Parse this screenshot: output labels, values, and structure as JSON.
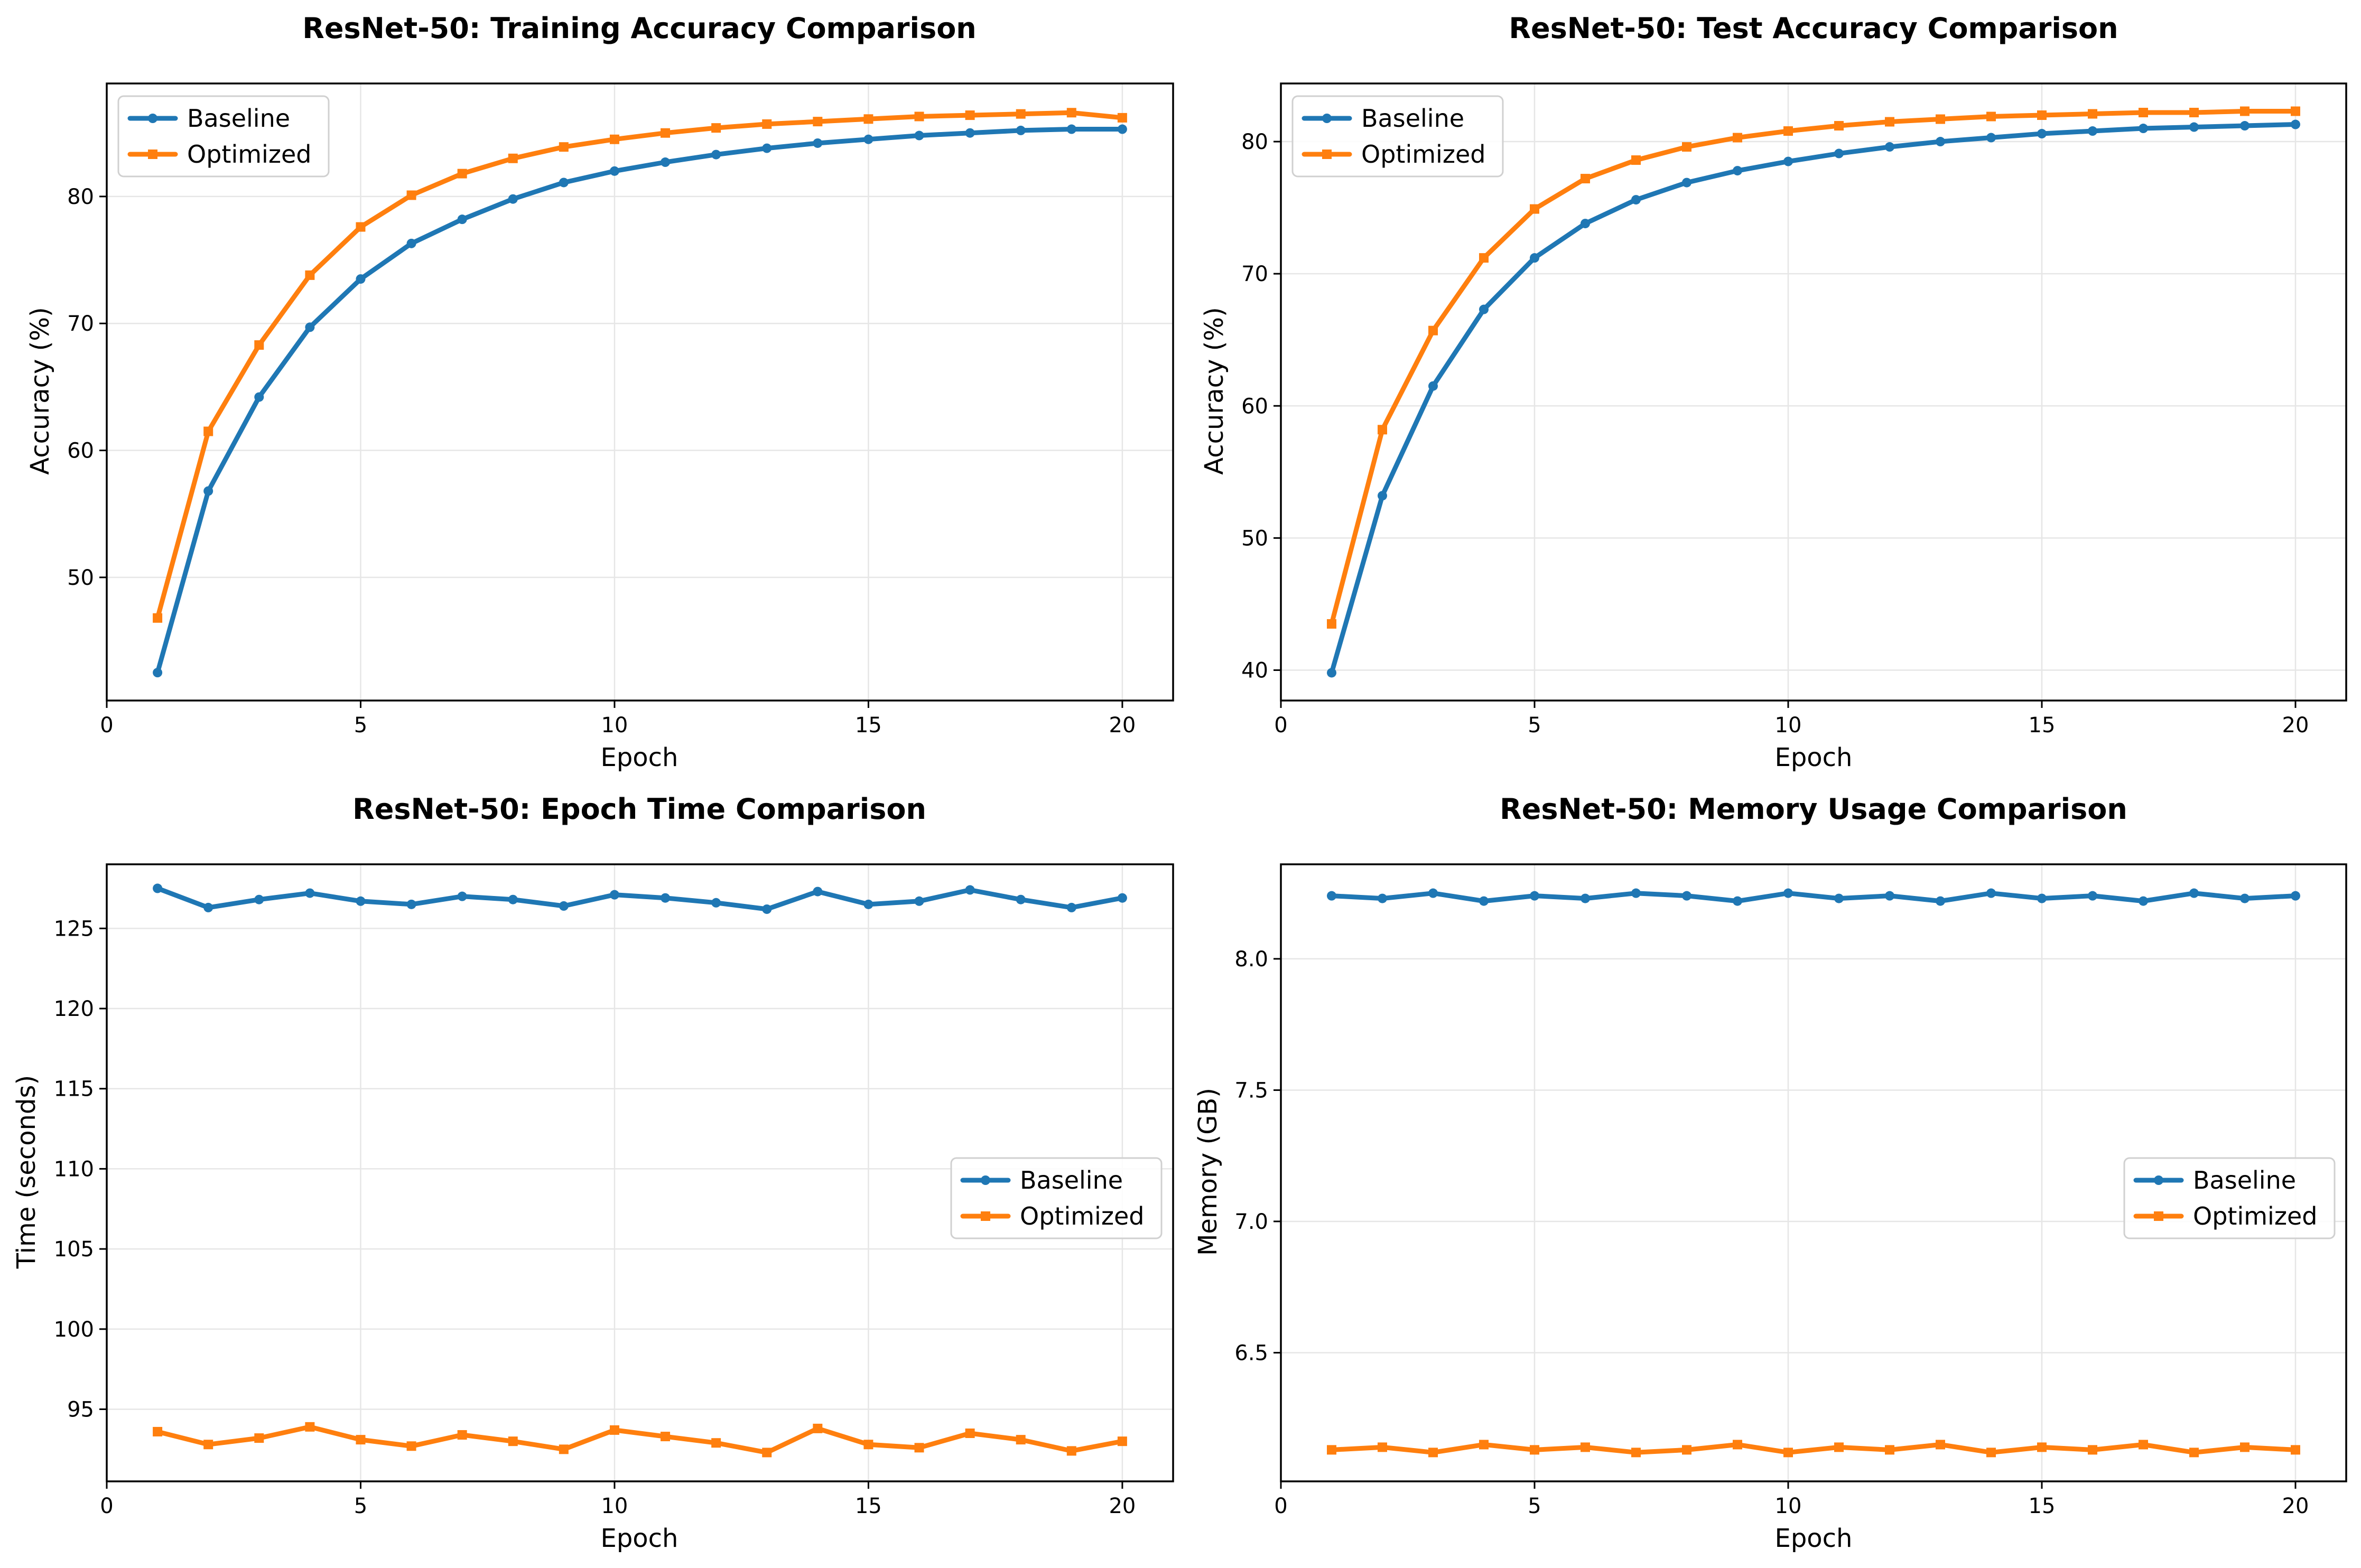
{
  "colors": {
    "baseline": "#1f77b4",
    "optimized": "#ff7f0e"
  },
  "chart_data": [
    {
      "type": "line",
      "title": "ResNet-50: Training Accuracy Comparison",
      "xlabel": "Epoch",
      "ylabel": "Accuracy (%)",
      "xlim": [
        0,
        21
      ],
      "ylim": [
        40.3,
        88.9
      ],
      "xticks": [
        "0",
        "5",
        "10",
        "15",
        "20"
      ],
      "yticks": [
        "50",
        "60",
        "70",
        "80"
      ],
      "grid": true,
      "legend": "upper-left",
      "x": [
        1,
        2,
        3,
        4,
        5,
        6,
        7,
        8,
        9,
        10,
        11,
        12,
        13,
        14,
        15,
        16,
        17,
        18,
        19,
        20
      ],
      "series": [
        {
          "name": "Baseline",
          "marker": "circle",
          "values": [
            42.5,
            56.8,
            64.2,
            69.7,
            73.5,
            76.3,
            78.2,
            79.8,
            81.1,
            82.0,
            82.7,
            83.3,
            83.8,
            84.2,
            84.5,
            84.8,
            85.0,
            85.2,
            85.3,
            85.3
          ]
        },
        {
          "name": "Optimized",
          "marker": "square",
          "values": [
            46.8,
            61.5,
            68.3,
            73.8,
            77.6,
            80.1,
            81.8,
            83.0,
            83.9,
            84.5,
            85.0,
            85.4,
            85.7,
            85.9,
            86.1,
            86.3,
            86.4,
            86.5,
            86.6,
            86.2
          ]
        }
      ]
    },
    {
      "type": "line",
      "title": "ResNet-50: Test Accuracy Comparison",
      "xlabel": "Epoch",
      "ylabel": "Accuracy (%)",
      "xlim": [
        0,
        21
      ],
      "ylim": [
        37.7,
        84.4
      ],
      "xticks": [
        "0",
        "5",
        "10",
        "15",
        "20"
      ],
      "yticks": [
        "40",
        "50",
        "60",
        "70",
        "80"
      ],
      "grid": true,
      "legend": "upper-left",
      "x": [
        1,
        2,
        3,
        4,
        5,
        6,
        7,
        8,
        9,
        10,
        11,
        12,
        13,
        14,
        15,
        16,
        17,
        18,
        19,
        20
      ],
      "series": [
        {
          "name": "Baseline",
          "marker": "circle",
          "values": [
            39.8,
            53.2,
            61.5,
            67.3,
            71.2,
            73.8,
            75.6,
            76.9,
            77.8,
            78.5,
            79.1,
            79.6,
            80.0,
            80.3,
            80.6,
            80.8,
            81.0,
            81.1,
            81.2,
            81.3
          ]
        },
        {
          "name": "Optimized",
          "marker": "square",
          "values": [
            43.5,
            58.2,
            65.7,
            71.2,
            74.9,
            77.2,
            78.6,
            79.6,
            80.3,
            80.8,
            81.2,
            81.5,
            81.7,
            81.9,
            82.0,
            82.1,
            82.2,
            82.2,
            82.3,
            82.3
          ]
        }
      ]
    },
    {
      "type": "line",
      "title": "ResNet-50: Epoch Time Comparison",
      "xlabel": "Epoch",
      "ylabel": "Time (seconds)",
      "xlim": [
        0,
        21
      ],
      "ylim": [
        90.5,
        129.0
      ],
      "xticks": [
        "0",
        "5",
        "10",
        "15",
        "20"
      ],
      "yticks": [
        "95",
        "100",
        "105",
        "110",
        "115",
        "120",
        "125"
      ],
      "grid": true,
      "legend": "center-right",
      "x": [
        1,
        2,
        3,
        4,
        5,
        6,
        7,
        8,
        9,
        10,
        11,
        12,
        13,
        14,
        15,
        16,
        17,
        18,
        19,
        20
      ],
      "series": [
        {
          "name": "Baseline",
          "marker": "circle",
          "values": [
            127.5,
            126.3,
            126.8,
            127.2,
            126.7,
            126.5,
            127.0,
            126.8,
            126.4,
            127.1,
            126.9,
            126.6,
            126.2,
            127.3,
            126.5,
            126.7,
            127.4,
            126.8,
            126.3,
            126.9
          ]
        },
        {
          "name": "Optimized",
          "marker": "square",
          "values": [
            93.6,
            92.8,
            93.2,
            93.9,
            93.1,
            92.7,
            93.4,
            93.0,
            92.5,
            93.7,
            93.3,
            92.9,
            92.3,
            93.8,
            92.8,
            92.6,
            93.5,
            93.1,
            92.4,
            93.0
          ]
        }
      ]
    },
    {
      "type": "line",
      "title": "ResNet-50: Memory Usage Comparison",
      "xlabel": "Epoch",
      "ylabel": "Memory (GB)",
      "xlim": [
        0,
        21
      ],
      "ylim": [
        6.01,
        8.36
      ],
      "xticks": [
        "0",
        "5",
        "10",
        "15",
        "20"
      ],
      "yticks": [
        "6.5",
        "7.0",
        "7.5",
        "8.0"
      ],
      "grid": true,
      "legend": "center-right",
      "x": [
        1,
        2,
        3,
        4,
        5,
        6,
        7,
        8,
        9,
        10,
        11,
        12,
        13,
        14,
        15,
        16,
        17,
        18,
        19,
        20
      ],
      "series": [
        {
          "name": "Baseline",
          "marker": "circle",
          "values": [
            8.24,
            8.23,
            8.25,
            8.22,
            8.24,
            8.23,
            8.25,
            8.24,
            8.22,
            8.25,
            8.23,
            8.24,
            8.22,
            8.25,
            8.23,
            8.24,
            8.22,
            8.25,
            8.23,
            8.24
          ]
        },
        {
          "name": "Optimized",
          "marker": "square",
          "values": [
            6.13,
            6.14,
            6.12,
            6.15,
            6.13,
            6.14,
            6.12,
            6.13,
            6.15,
            6.12,
            6.14,
            6.13,
            6.15,
            6.12,
            6.14,
            6.13,
            6.15,
            6.12,
            6.14,
            6.13
          ]
        }
      ]
    }
  ]
}
